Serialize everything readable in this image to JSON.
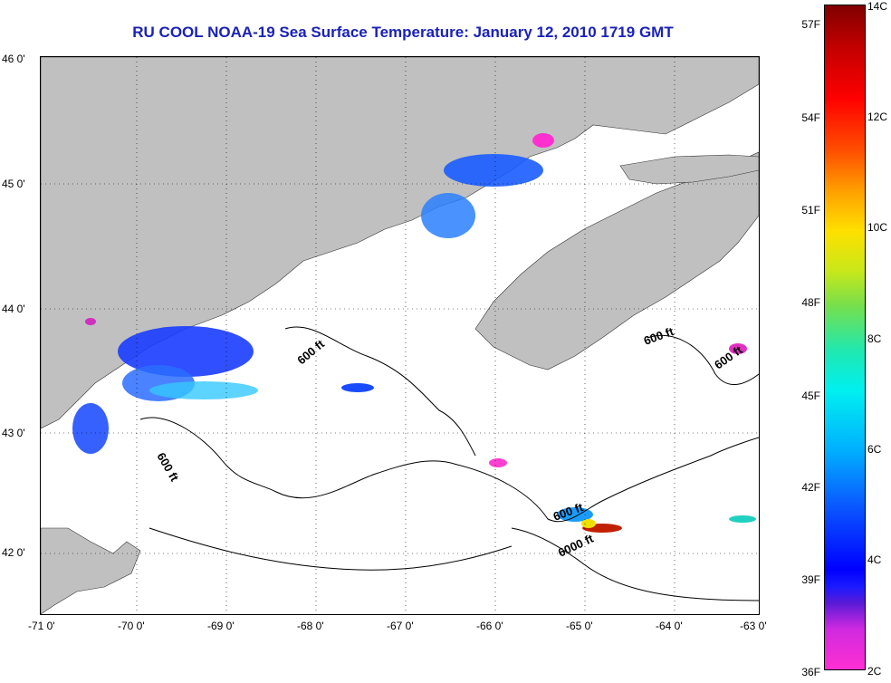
{
  "title": "RU COOL  NOAA-19  Sea Surface Temperature:  January 12, 2010 1719 GMT",
  "map": {
    "lon_range": [
      -71,
      -63
    ],
    "lat_range": [
      41.5,
      46
    ],
    "x_ticks": [
      "-71 0'",
      "-70 0'",
      "-69 0'",
      "-68 0'",
      "-67 0'",
      "-66 0'",
      "-65 0'",
      "-64 0'",
      "-63 0'"
    ],
    "y_ticks": [
      "46 0'",
      "45 0'",
      "44 0'",
      "43 0'",
      "42 0'"
    ],
    "contour_labels": [
      "600 ft",
      "600 ft",
      "600 ft",
      "600 ft",
      "600 ft",
      "6000 ft"
    ],
    "land_color": "#c0c0c0",
    "grid": "dotted"
  },
  "colorbar": {
    "fahrenheit_labels": [
      "57F",
      "54F",
      "51F",
      "48F",
      "45F",
      "42F",
      "39F",
      "36F"
    ],
    "celsius_labels": [
      "14C",
      "12C",
      "10C",
      "8C",
      "6C",
      "4C",
      "2C"
    ]
  }
}
